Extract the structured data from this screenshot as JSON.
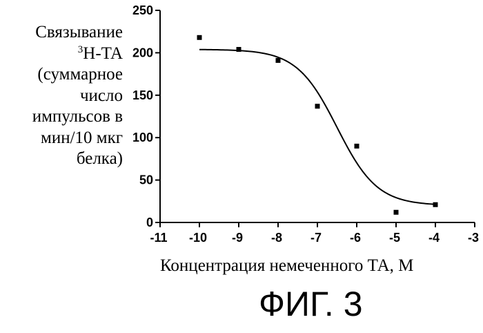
{
  "chart_data": {
    "type": "scatter",
    "title": "",
    "ylabel_lines": [
      "Связывание",
      "H-TA",
      "(суммарное",
      "число",
      "импульсов в",
      "мин/10 мкг",
      "белка)"
    ],
    "ylabel_superscript": "3",
    "xlabel": "Концентрация немеченного ТА, М",
    "xlim": [
      -11,
      -3
    ],
    "ylim": [
      0,
      250
    ],
    "xticks": [
      "-11",
      "-10",
      "-9",
      "-8",
      "-7",
      "-6",
      "-5",
      "-4",
      "-3"
    ],
    "yticks": [
      "0",
      "50",
      "100",
      "150",
      "200",
      "250"
    ],
    "x": [
      -10,
      -9,
      -8,
      -7,
      -6,
      -5,
      -4
    ],
    "y": [
      218,
      204,
      191,
      137,
      90,
      12,
      21
    ],
    "fit_curve": {
      "model": "sigmoid",
      "top": 204,
      "bottom": 20,
      "log_ic50": -6.5,
      "hill_slope": -0.85,
      "x_range": [
        -10,
        -4
      ]
    },
    "grid": false
  },
  "figure_label": "ФИГ. 3"
}
